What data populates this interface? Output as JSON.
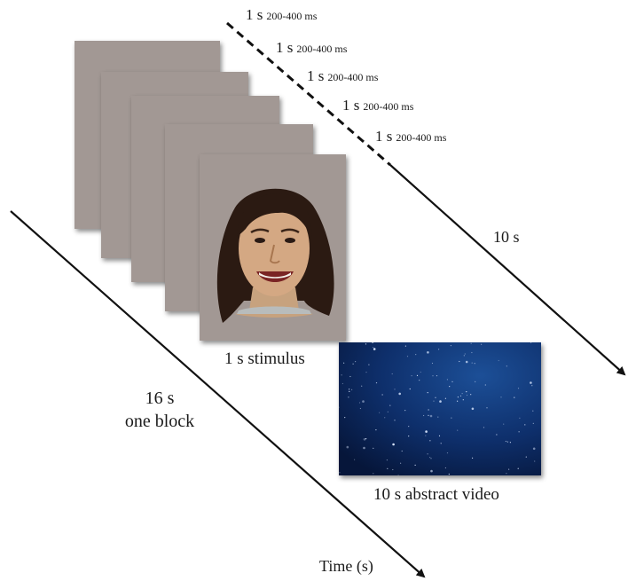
{
  "timing_rows": [
    {
      "main": "1 s",
      "small": "200-400 ms"
    },
    {
      "main": "1 s",
      "small": "200-400 ms"
    },
    {
      "main": "1 s",
      "small": "200-400 ms"
    },
    {
      "main": "1 s",
      "small": "200-400 ms"
    },
    {
      "main": "1 s",
      "small": "200-400 ms"
    }
  ],
  "labels": {
    "stimulus_duration": "10 s",
    "stimulus_caption": "1 s stimulus",
    "block_duration": "16 s",
    "block_caption": "one block",
    "video_caption": "10 s abstract video",
    "time_axis": "Time (s)"
  },
  "colors": {
    "card_gray": "#a29894",
    "arrow": "#111111",
    "video_dark": "#06163a",
    "video_light": "#1c4f97"
  },
  "icons": {
    "face": "smiling-face-photo",
    "video": "starfield-video"
  }
}
